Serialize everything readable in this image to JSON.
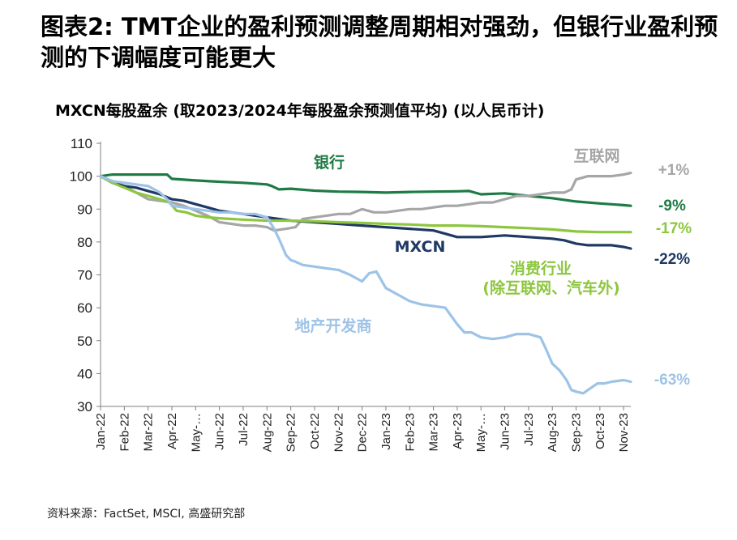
{
  "title": "图表2: TMT企业的盈利预测调整周期相对强劲，但银行业盈利预测的下调幅度可能更大",
  "source": "资料来源：FactSet, MSCI, 高盛研究部",
  "chart_data": {
    "type": "line",
    "title": "MXCN每股盈余 (取2023/2024年每股盈余预测值平均) (以人民币计)",
    "xlabel": "",
    "ylabel": "",
    "ylim": [
      30,
      110
    ],
    "yticks": [
      30,
      40,
      50,
      60,
      70,
      80,
      90,
      100,
      110
    ],
    "x_tick_labels": [
      "Jan-22",
      "Feb-22",
      "Mar-22",
      "Apr-22",
      "May-…",
      "Jun-22",
      "Jul-22",
      "Aug-22",
      "Sep-22",
      "Oct-22",
      "Nov-22",
      "Dec-22",
      "Jan-23",
      "Feb-23",
      "Mar-23",
      "Apr-23",
      "May-…",
      "Jun-23",
      "Jul-23",
      "Aug-23",
      "Sep-23",
      "Oct-23",
      "Nov-23"
    ],
    "x_range_months": [
      0,
      22.3
    ],
    "grid": false,
    "series": [
      {
        "name": "银行",
        "color": "#1E7B45",
        "end_label": "-9%",
        "x": [
          0,
          0.5,
          1,
          2,
          2.8,
          3,
          4,
          5,
          6,
          7,
          7.2,
          7.5,
          8,
          9,
          10,
          11,
          12,
          13,
          14,
          15,
          15.5,
          16,
          17,
          18,
          19,
          20,
          21,
          22,
          22.3
        ],
        "values": [
          100,
          100.5,
          100.5,
          100.5,
          100.5,
          99.2,
          98.7,
          98.3,
          98.0,
          97.5,
          97.0,
          96.0,
          96.2,
          95.6,
          95.3,
          95.2,
          95.0,
          95.2,
          95.3,
          95.4,
          95.5,
          94.5,
          94.8,
          94.0,
          93.3,
          92.3,
          91.7,
          91.2,
          91.0
        ]
      },
      {
        "name": "互联网",
        "color": "#A6A6A6",
        "end_label": "+1%",
        "x": [
          0,
          0.5,
          1,
          1.5,
          2,
          2.5,
          3,
          3.5,
          4,
          4.5,
          5,
          5.5,
          6,
          6.5,
          7,
          7.3,
          7.8,
          8.2,
          8.5,
          9,
          9.5,
          10,
          10.5,
          11,
          11.5,
          12,
          12.5,
          13,
          13.5,
          14,
          14.5,
          15,
          15.5,
          16,
          16.5,
          17,
          17.5,
          18,
          18.5,
          19,
          19.5,
          19.8,
          20,
          20.5,
          21,
          21.5,
          22,
          22.3
        ],
        "values": [
          100,
          98.5,
          97,
          95,
          93,
          92.5,
          92,
          91,
          89.5,
          88,
          86,
          85.5,
          85,
          85,
          84.5,
          83.5,
          84,
          84.5,
          87,
          87.5,
          88,
          88.5,
          88.5,
          90,
          89,
          89,
          89.5,
          90,
          90,
          90.5,
          91,
          91,
          91.5,
          92,
          92,
          93,
          94,
          94,
          94.5,
          95,
          95,
          96,
          99,
          100,
          100,
          100,
          100.5,
          101
        ]
      },
      {
        "name": "MXCN",
        "color": "#1F3864",
        "end_label": "-22%",
        "x": [
          0,
          0.5,
          1,
          1.5,
          2,
          2.5,
          3,
          3.5,
          4,
          4.5,
          5,
          5.5,
          6,
          6.5,
          7,
          7.5,
          8,
          9,
          10,
          11,
          12,
          13,
          14,
          14.5,
          15,
          16,
          17,
          18,
          19,
          19.5,
          20,
          20.5,
          21,
          21.5,
          22,
          22.3
        ],
        "values": [
          100,
          98,
          97,
          96.5,
          95.5,
          94.5,
          93,
          92.5,
          91.5,
          90.5,
          89.5,
          89,
          88.5,
          88,
          87.5,
          87,
          86.5,
          86,
          85.5,
          85,
          84.5,
          84,
          83.5,
          82.5,
          81.5,
          81.5,
          82,
          81.5,
          81,
          80.5,
          79.5,
          79,
          79,
          79,
          78.5,
          78
        ]
      },
      {
        "name": "消费行业 (除互联网、汽车外)",
        "color": "#8DC63F",
        "end_label": "-17%",
        "x": [
          0,
          0.5,
          1,
          1.5,
          2,
          2.5,
          2.9,
          3.2,
          3.6,
          4,
          4.5,
          5,
          6,
          7,
          8,
          9,
          10,
          11,
          12,
          13,
          14,
          15,
          16,
          17,
          18,
          19,
          20,
          21,
          22,
          22.3
        ],
        "values": [
          100,
          98,
          96.5,
          95,
          94,
          93,
          92,
          89.5,
          89,
          88,
          87.5,
          87.2,
          86.8,
          86.5,
          86.5,
          86.3,
          86,
          85.8,
          85.5,
          85.3,
          85,
          85,
          84.8,
          84.5,
          84.2,
          83.8,
          83.2,
          83,
          83,
          83
        ]
      },
      {
        "name": "地产开发商",
        "color": "#9DC3E6",
        "end_label": "-63%",
        "x": [
          0,
          0.5,
          1,
          1.5,
          2,
          2.5,
          2.8,
          3,
          3.5,
          4,
          4.5,
          5,
          5.5,
          6,
          6.5,
          7,
          7.3,
          7.5,
          7.8,
          8,
          8.2,
          8.5,
          9,
          9.5,
          10,
          10.5,
          11,
          11.3,
          11.6,
          12,
          12.5,
          13,
          13.5,
          14,
          14.5,
          15,
          15.3,
          15.6,
          16,
          16.5,
          17,
          17.5,
          18,
          18.5,
          18.7,
          19,
          19.3,
          19.6,
          19.8,
          20,
          20.3,
          20.6,
          20.9,
          21.2,
          21.5,
          22,
          22.3
        ],
        "values": [
          100,
          98.5,
          98,
          97.5,
          97,
          95,
          93,
          91,
          90.5,
          90,
          89.5,
          89,
          89,
          88.5,
          88.5,
          87.5,
          84,
          81,
          76,
          74.5,
          74,
          73,
          72.5,
          72,
          71.5,
          70,
          68,
          70.5,
          71,
          66,
          64,
          62,
          61,
          60.5,
          60,
          55,
          52.5,
          52.5,
          51,
          50.5,
          51,
          52,
          52,
          51,
          48,
          43,
          41,
          38,
          35,
          34.5,
          34,
          35.5,
          37,
          37,
          37.5,
          38,
          37.5
        ]
      }
    ],
    "annotations": [
      "银行",
      "互联网",
      "MXCN",
      "消费行业",
      "(除互联网、汽车外)",
      "地产开发商"
    ],
    "end_labels": [
      "+1%",
      "-9%",
      "-17%",
      "-22%",
      "-63%"
    ],
    "annotation_colors": [
      "#1E7B45",
      "#A6A6A6",
      "#1F3864",
      "#8DC63F",
      "#8DC63F",
      "#9DC3E6"
    ]
  }
}
